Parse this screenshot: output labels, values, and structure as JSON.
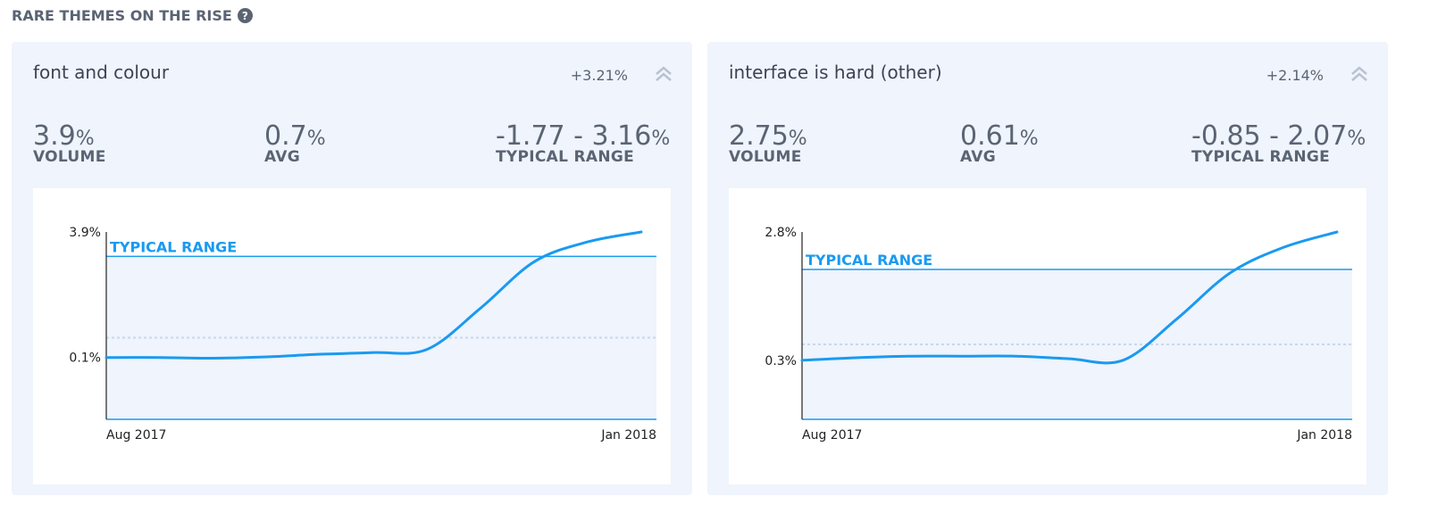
{
  "header": {
    "title": "RARE THEMES ON THE RISE"
  },
  "cards": [
    {
      "title": "font and colour",
      "change": "+3.21%",
      "stats": [
        {
          "value": "3.9",
          "unit": "%",
          "label": "VOLUME"
        },
        {
          "value": "0.7",
          "unit": "%",
          "label": "AVG"
        },
        {
          "value": "-1.77 - 3.16",
          "unit": "%",
          "label": "TYPICAL RANGE"
        }
      ],
      "chart_data": {
        "type": "line",
        "annotation": "TYPICAL RANGE",
        "x": [
          "Aug 2017",
          null,
          null,
          null,
          null,
          null,
          null,
          null,
          null,
          null,
          "Jan 2018"
        ],
        "series": [
          {
            "color": "#1a9af0",
            "values": [
              0.1,
              0.1,
              0.08,
              0.12,
              0.2,
              0.25,
              0.35,
              1.6,
              3.0,
              3.6,
              3.9
            ]
          }
        ],
        "ylim": [
          -1.77,
          3.9
        ],
        "yticks": [
          {
            "value": 3.9,
            "label": "3.9%"
          },
          {
            "value": 0.1,
            "label": "0.1%"
          }
        ],
        "typical_range": [
          -1.77,
          3.16
        ],
        "avg": 0.7
      }
    },
    {
      "title": "interface is hard (other)",
      "change": "+2.14%",
      "stats": [
        {
          "value": "2.75",
          "unit": "%",
          "label": "VOLUME"
        },
        {
          "value": "0.61",
          "unit": "%",
          "label": "AVG"
        },
        {
          "value": "-0.85 - 2.07",
          "unit": "%",
          "label": "TYPICAL RANGE"
        }
      ],
      "chart_data": {
        "type": "line",
        "annotation": "TYPICAL RANGE",
        "x": [
          "Aug 2017",
          null,
          null,
          null,
          null,
          null,
          null,
          null,
          null,
          null,
          "Jan 2018"
        ],
        "series": [
          {
            "color": "#1a9af0",
            "values": [
              0.3,
              0.35,
              0.38,
              0.38,
              0.38,
              0.33,
              0.3,
              1.1,
              2.0,
              2.5,
              2.8
            ]
          }
        ],
        "ylim": [
          -0.85,
          2.8
        ],
        "yticks": [
          {
            "value": 2.8,
            "label": "2.8%"
          },
          {
            "value": 0.3,
            "label": "0.3%"
          }
        ],
        "typical_range": [
          -0.85,
          2.07
        ],
        "avg": 0.61
      }
    }
  ]
}
